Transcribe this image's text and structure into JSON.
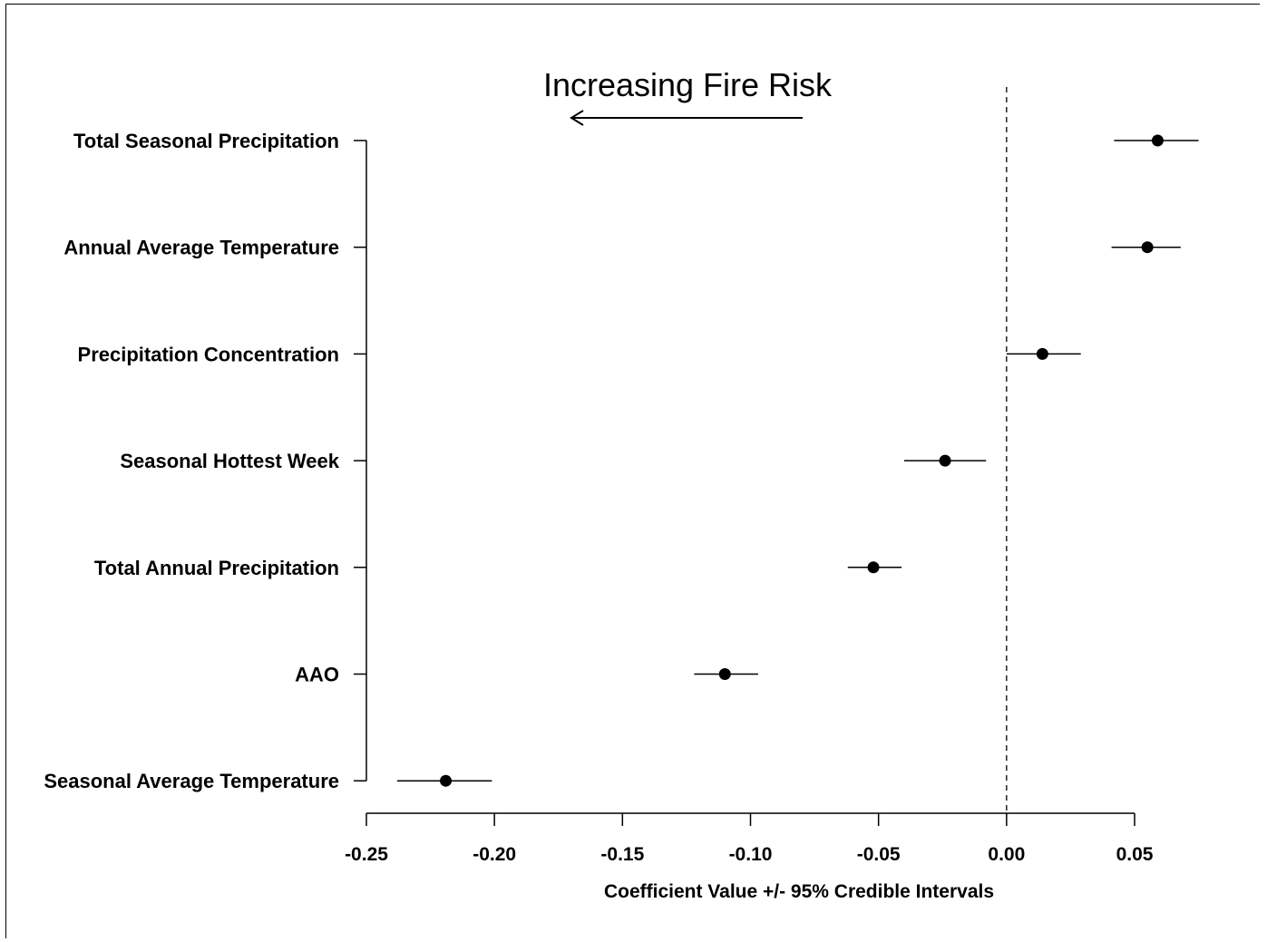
{
  "chart_data": {
    "type": "scatter",
    "annotation": "Increasing Fire Risk",
    "xlabel": "Coefficient Value +/- 95% Credible Intervals",
    "xlim": [
      -0.25,
      0.05
    ],
    "xticks": [
      "-0.25",
      "-0.20",
      "-0.15",
      "-0.10",
      "-0.05",
      "0.00",
      "0.05"
    ],
    "xtick_values": [
      -0.25,
      -0.2,
      -0.15,
      -0.1,
      -0.05,
      0.0,
      0.05
    ],
    "reference_line_x": 0.0,
    "items": [
      {
        "label": "Total Seasonal Precipitation",
        "mean": 0.059,
        "lower": 0.042,
        "upper": 0.075
      },
      {
        "label": "Annual Average Temperature",
        "mean": 0.055,
        "lower": 0.041,
        "upper": 0.068
      },
      {
        "label": "Precipitation Concentration",
        "mean": 0.014,
        "lower": 0.0,
        "upper": 0.029
      },
      {
        "label": "Seasonal Hottest Week",
        "mean": -0.024,
        "lower": -0.04,
        "upper": -0.008
      },
      {
        "label": "Total Annual Precipitation",
        "mean": -0.052,
        "lower": -0.062,
        "upper": -0.041
      },
      {
        "label": "AAO",
        "mean": -0.11,
        "lower": -0.122,
        "upper": -0.097
      },
      {
        "label": "Seasonal Average Temperature",
        "mean": -0.219,
        "lower": -0.238,
        "upper": -0.201
      }
    ]
  }
}
